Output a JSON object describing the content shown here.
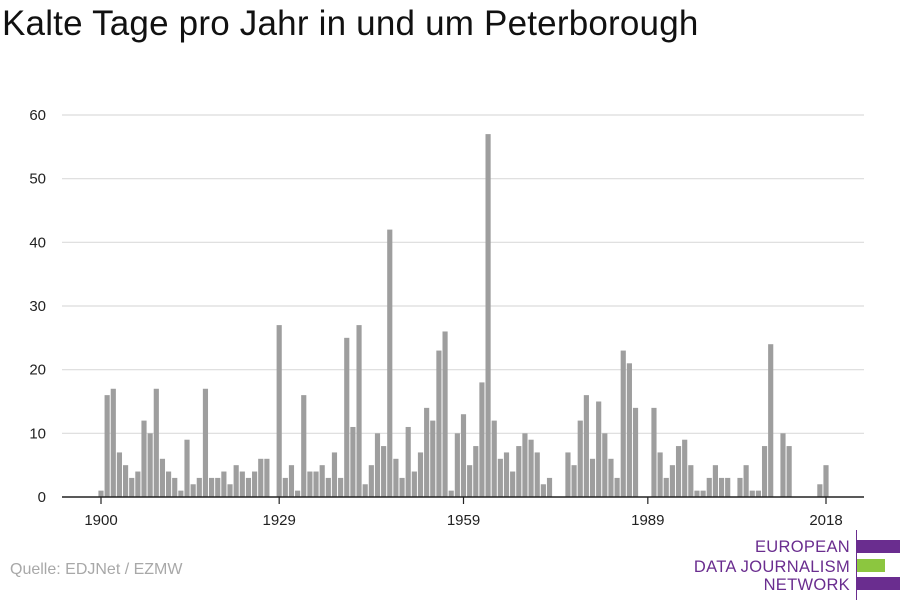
{
  "title": "Kalte Tage pro Jahr in und um Peterborough",
  "source": "Quelle: EDJNet / EZMW",
  "logo": {
    "lines": [
      "EUROPEAN",
      "DATA JOURNALISM",
      "NETWORK"
    ],
    "colors": {
      "purple": "#6a2d8f",
      "green": "#8cc63f"
    }
  },
  "chart_data": {
    "type": "bar",
    "title": "Kalte Tage pro Jahr in und um Peterborough",
    "xlabel": "",
    "ylabel": "",
    "ylim": [
      0,
      60
    ],
    "yticks": [
      0,
      10,
      20,
      30,
      40,
      50,
      60
    ],
    "xticks": [
      1900,
      1929,
      1959,
      1989,
      2018
    ],
    "bar_color": "#9e9e9e",
    "grid": true,
    "categories": [
      1900,
      1901,
      1902,
      1903,
      1904,
      1905,
      1906,
      1907,
      1908,
      1909,
      1910,
      1911,
      1912,
      1913,
      1914,
      1915,
      1916,
      1917,
      1918,
      1919,
      1920,
      1921,
      1922,
      1923,
      1924,
      1925,
      1926,
      1927,
      1928,
      1929,
      1930,
      1931,
      1932,
      1933,
      1934,
      1935,
      1936,
      1937,
      1938,
      1939,
      1940,
      1941,
      1942,
      1943,
      1944,
      1945,
      1946,
      1947,
      1948,
      1949,
      1950,
      1951,
      1952,
      1953,
      1954,
      1955,
      1956,
      1957,
      1958,
      1959,
      1960,
      1961,
      1962,
      1963,
      1964,
      1965,
      1966,
      1967,
      1968,
      1969,
      1970,
      1971,
      1972,
      1973,
      1974,
      1975,
      1976,
      1977,
      1978,
      1979,
      1980,
      1981,
      1982,
      1983,
      1984,
      1985,
      1986,
      1987,
      1988,
      1989,
      1990,
      1991,
      1992,
      1993,
      1994,
      1995,
      1996,
      1997,
      1998,
      1999,
      2000,
      2001,
      2002,
      2003,
      2004,
      2005,
      2006,
      2007,
      2008,
      2009,
      2010,
      2011,
      2012,
      2013,
      2014,
      2015,
      2016,
      2017,
      2018
    ],
    "values": [
      1,
      16,
      17,
      7,
      5,
      3,
      4,
      12,
      10,
      17,
      6,
      4,
      3,
      1,
      9,
      2,
      3,
      17,
      3,
      3,
      4,
      2,
      5,
      4,
      3,
      4,
      6,
      6,
      0,
      27,
      3,
      5,
      1,
      16,
      4,
      4,
      5,
      3,
      7,
      3,
      25,
      11,
      27,
      2,
      5,
      10,
      8,
      42,
      6,
      3,
      11,
      4,
      7,
      14,
      12,
      23,
      26,
      1,
      10,
      13,
      5,
      8,
      18,
      57,
      12,
      6,
      7,
      4,
      8,
      10,
      9,
      7,
      2,
      3,
      0,
      0,
      7,
      5,
      12,
      16,
      6,
      15,
      10,
      6,
      3,
      23,
      21,
      14,
      0,
      0,
      14,
      7,
      3,
      5,
      8,
      9,
      5,
      1,
      1,
      3,
      5,
      3,
      3,
      0,
      3,
      5,
      1,
      1,
      8,
      24,
      0,
      10,
      8,
      0,
      0,
      0,
      0,
      2,
      5
    ]
  }
}
